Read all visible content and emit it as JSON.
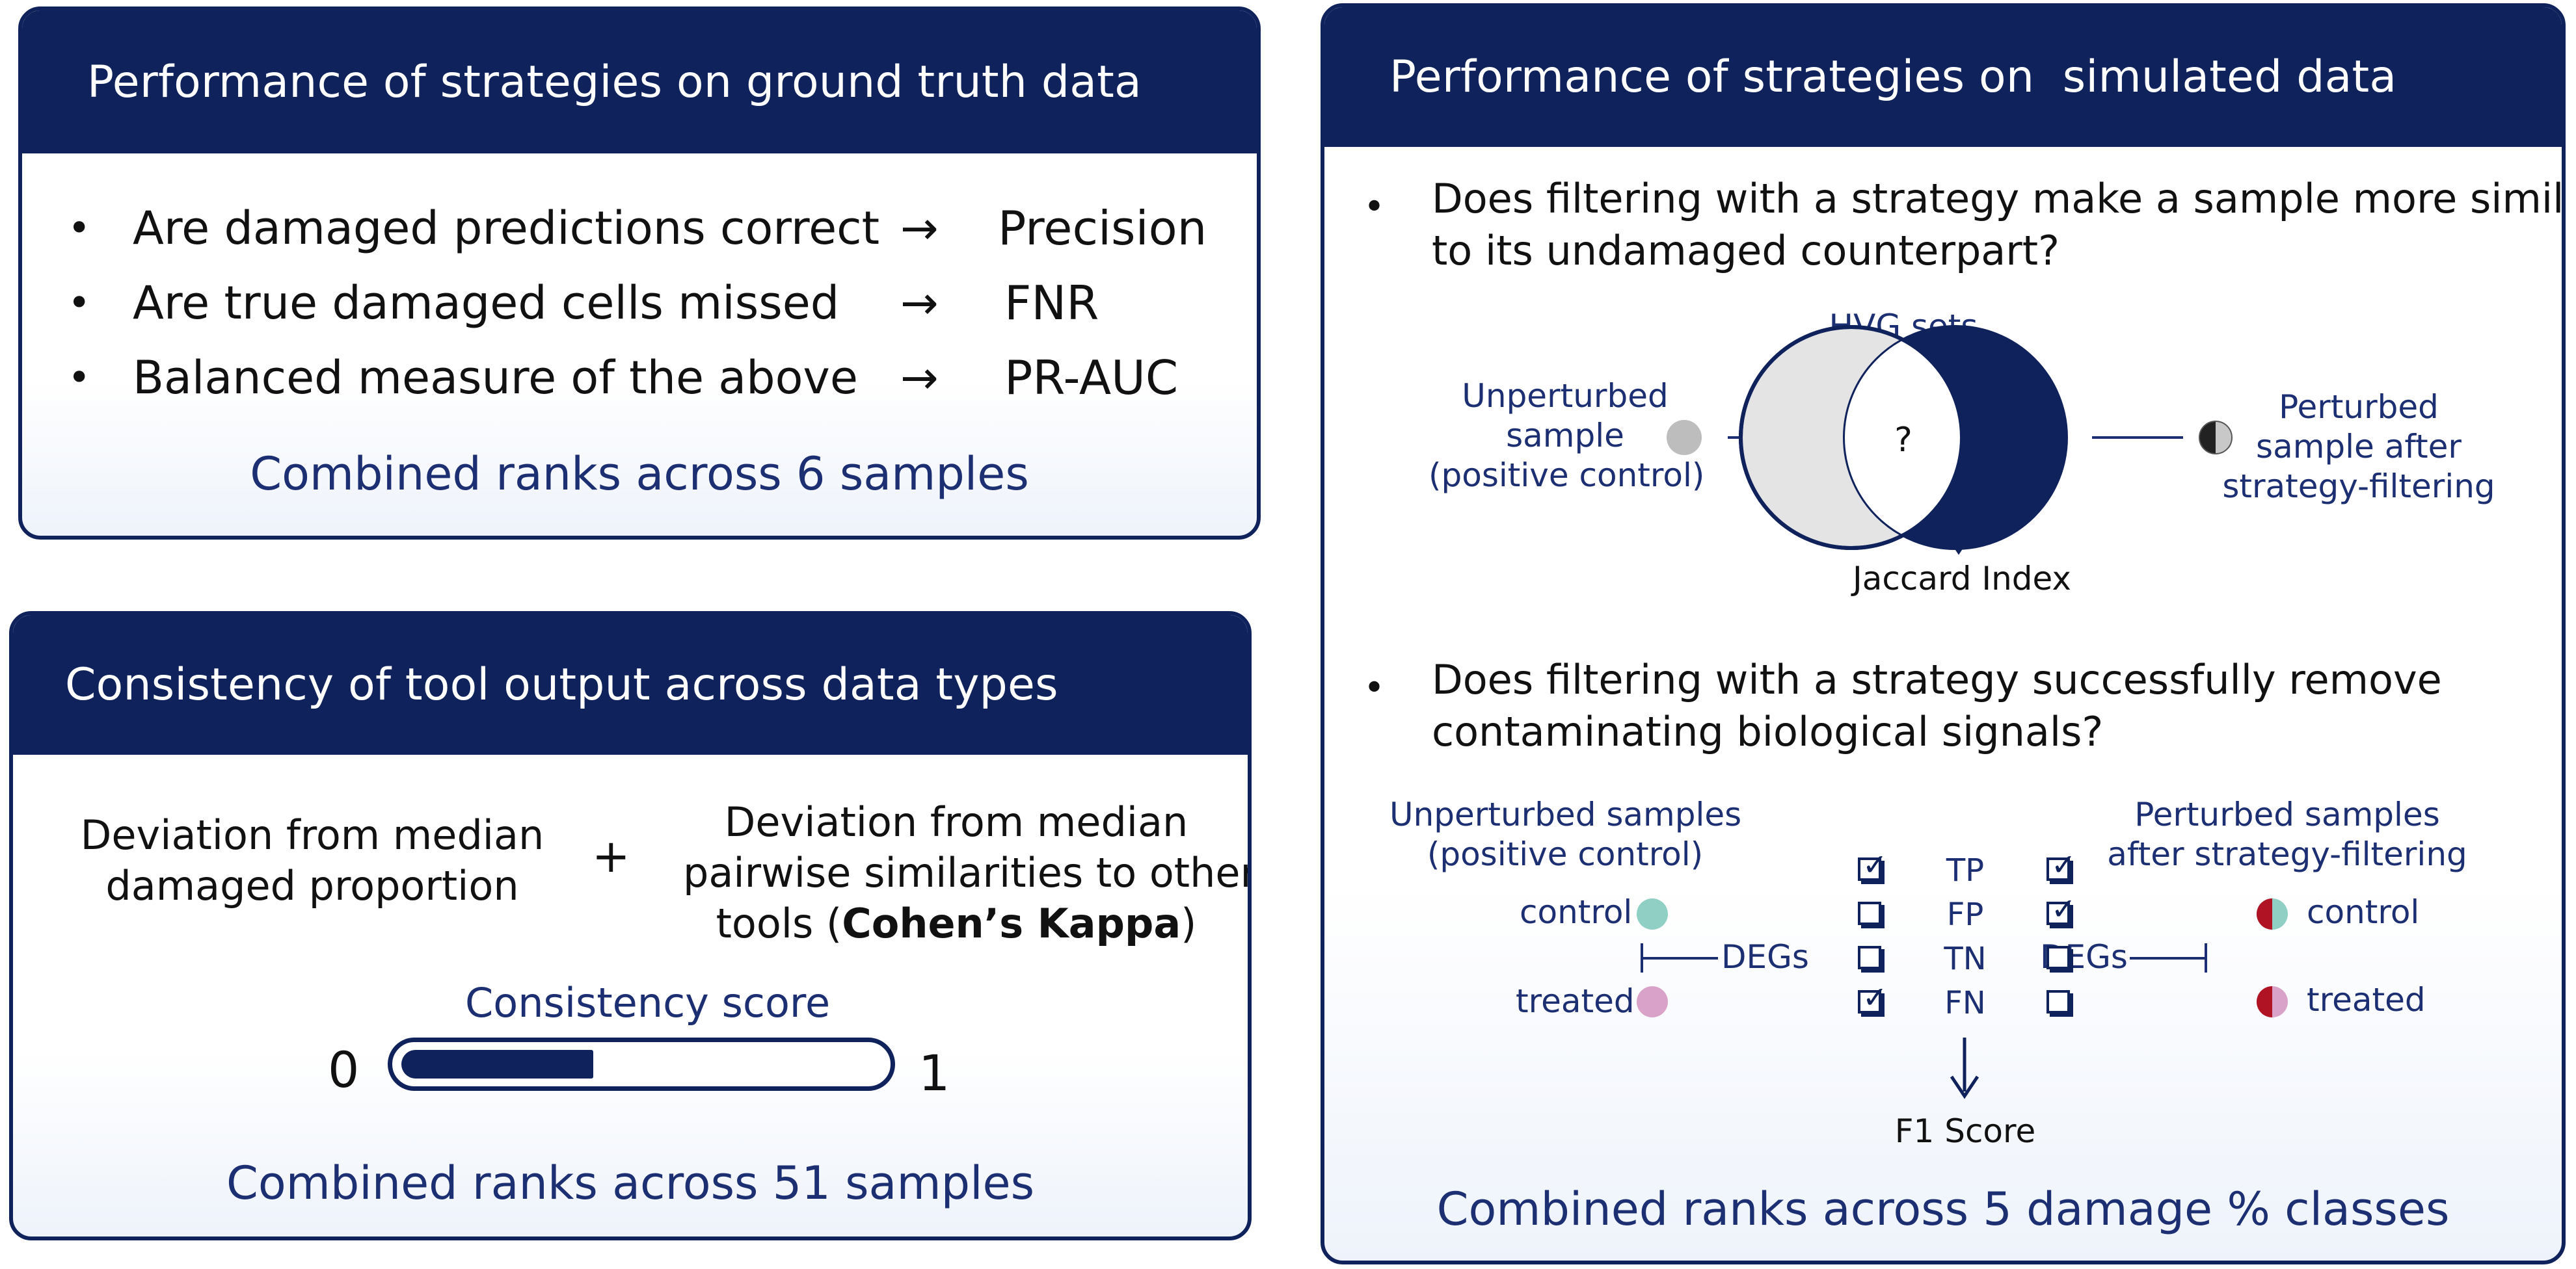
{
  "panels": {
    "ground_truth": {
      "title": "Performance of strategies on ground truth data",
      "bullets": [
        {
          "bullet": "•",
          "text": "Are damaged predictions correct",
          "arrow": "→",
          "metric": "Precision"
        },
        {
          "bullet": "•",
          "text": "Are true damaged cells missed",
          "arrow": "→",
          "metric": "FNR"
        },
        {
          "bullet": "•",
          "text": "Balanced measure of the above",
          "arrow": "→",
          "metric": "PR-AUC"
        }
      ],
      "footer": "Combined ranks across 6 samples"
    },
    "consistency": {
      "title": "Consistency of tool output across data types",
      "left_line1": "Deviation from median",
      "left_line2": "damaged proportion",
      "plus": "+",
      "right_line1": "Deviation from median",
      "right_line2": "pairwise similarities to other",
      "right_line3_prefix": "tools (",
      "right_line3_bold": "Cohen’s Kappa",
      "right_line3_suffix": ")",
      "score_label": "Consistency score",
      "score_min": "0",
      "score_max": "1",
      "score_value": 0.4,
      "footer": "Combined ranks across 51 samples"
    },
    "simulated": {
      "title": "Performance of strategies on  simulated data",
      "q1_line1": "Does filtering with a strategy make a sample more similar",
      "q1_line2": "to its undamaged counterpart?",
      "hvg_label": "HVG sets",
      "unperturbed_l1": "Unperturbed",
      "unperturbed_l2": "sample",
      "unperturbed_l3": "(positive control)",
      "perturbed_l1": "Perturbed",
      "perturbed_l2": "sample after",
      "perturbed_l3": "strategy-filtering",
      "question_mark": "?",
      "jaccard": "Jaccard Index",
      "q2_line1": "Does filtering with a strategy successfully remove",
      "q2_line2": "contaminating biological signals?",
      "unpert_samples_l1": "Unperturbed samples",
      "unpert_samples_l2": "(positive control)",
      "pert_samples_l1": "Perturbed samples",
      "pert_samples_l2": "after strategy-filtering",
      "control": "control",
      "treated": "treated",
      "degs": "DEGs",
      "confusion": [
        "TP",
        "FP",
        "TN",
        "FN"
      ],
      "left_checks": [
        true,
        false,
        false,
        true
      ],
      "right_checks": [
        true,
        true,
        false,
        false
      ],
      "f1": "F1 Score",
      "footer": "Combined ranks across 5 damage % classes"
    }
  },
  "colors": {
    "header_bg": "#0f225c",
    "accent_blue": "#1c2f72",
    "control_teal": "#8fcfc4",
    "treated_pink": "#d9a2c8",
    "perturbed_red": "#b01324",
    "hvg_grey": "#e2e2e2"
  }
}
